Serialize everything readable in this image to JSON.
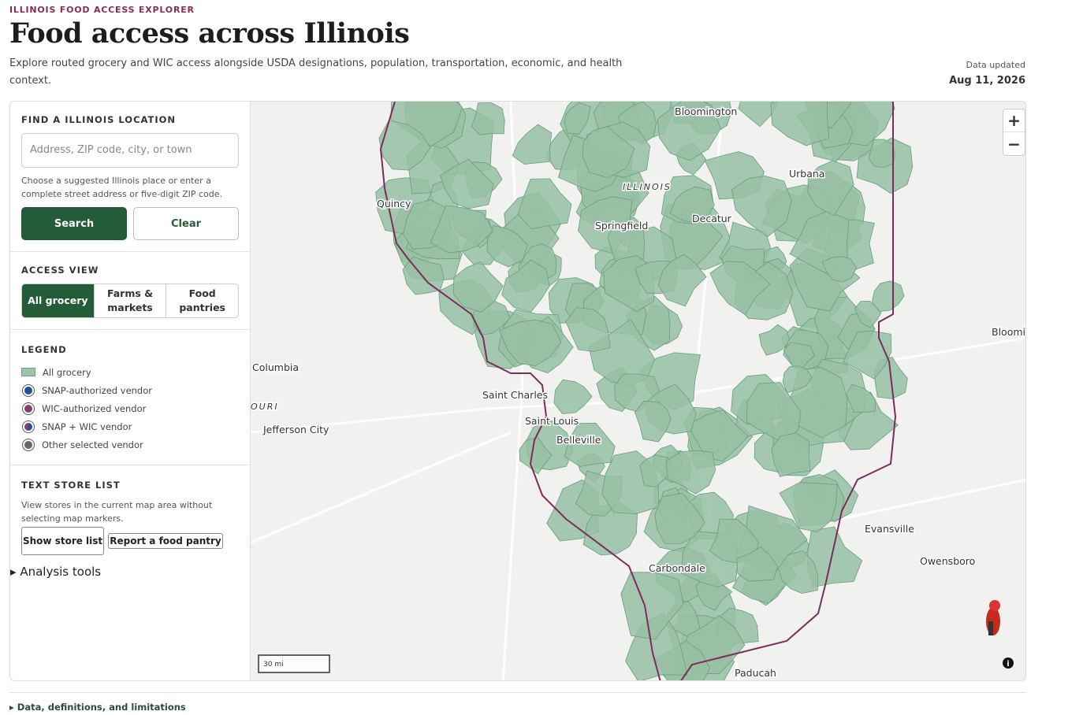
{
  "header": {
    "eyebrow": "ILLINOIS FOOD ACCESS EXPLORER",
    "title": "Food access across Illinois",
    "description": "Explore routed grocery and WIC access alongside USDA designations, population, transportation, economic, and health context.",
    "updated_label": "Data updated",
    "updated_date": "Aug 11, 2026"
  },
  "search": {
    "heading": "FIND A ILLINOIS LOCATION",
    "placeholder": "Address, ZIP code, city, or town",
    "help": "Choose a suggested Illinois place or enter a complete street address or five-digit ZIP code.",
    "search_button": "Search",
    "clear_button": "Clear"
  },
  "access_view": {
    "heading": "ACCESS VIEW",
    "options": [
      "All grocery",
      "Farms & markets",
      "Food pantries"
    ]
  },
  "legend": {
    "heading": "LEGEND",
    "items": [
      "All grocery",
      "SNAP-authorized vendor",
      "WIC-authorized vendor",
      "SNAP + WIC vendor",
      "Other selected vendor"
    ]
  },
  "store_list": {
    "heading": "TEXT STORE LIST",
    "description": "View stores in the current map area without selecting map markers.",
    "show_button": "Show store list",
    "report_button": "Report a food pantry"
  },
  "analysis": "Analysis tools",
  "map": {
    "labels": [
      "Bloomington",
      "Urbana",
      "ILLINOIS",
      "Quincy",
      "Springfield",
      "Decatur",
      "Bloomin",
      "Columbia",
      "Saint Charles",
      "OURI",
      "Saint Louis",
      "Jefferson City",
      "Belleville",
      "Evansville",
      "Owensboro",
      "Carbondale",
      "Paducah"
    ],
    "zoom_in": "+",
    "zoom_out": "−",
    "scale": "30 mi"
  },
  "footer": "Data, definitions, and limitations"
}
